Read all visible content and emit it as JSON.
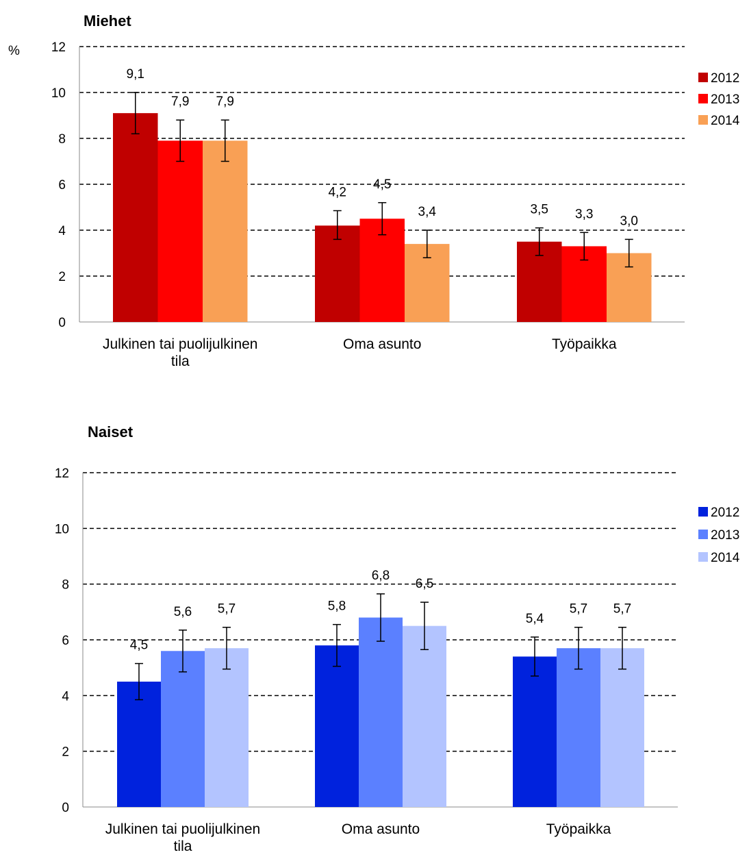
{
  "chart_data": [
    {
      "type": "bar",
      "title": "Miehet",
      "ylabel": "%",
      "ylim": [
        0,
        12
      ],
      "yticks": [
        "0",
        "2",
        "4",
        "6",
        "8",
        "10",
        "12"
      ],
      "grid": "dashed horizontal",
      "legend_position": "right",
      "categories": [
        [
          "Julkinen tai puolijulkinen",
          "tila"
        ],
        [
          "Oma asunto"
        ],
        [
          "Työpaikka"
        ]
      ],
      "series": [
        {
          "name": "2012",
          "color": "#C00000",
          "values": [
            9.1,
            4.2,
            3.5
          ],
          "labels": [
            "9,1",
            "4,2",
            "3,5"
          ],
          "err_low": [
            8.2,
            3.6,
            2.9
          ],
          "err_high": [
            10.0,
            4.85,
            4.1
          ]
        },
        {
          "name": "2013",
          "color": "#FF0000",
          "values": [
            7.9,
            4.5,
            3.3
          ],
          "labels": [
            "7,9",
            "4,5",
            "3,3"
          ],
          "err_low": [
            7.0,
            3.8,
            2.7
          ],
          "err_high": [
            8.8,
            5.2,
            3.9
          ]
        },
        {
          "name": "2014",
          "color": "#F9A055",
          "values": [
            7.9,
            3.4,
            3.0
          ],
          "labels": [
            "7,9",
            "3,4",
            "3,0"
          ],
          "err_low": [
            7.0,
            2.8,
            2.4
          ],
          "err_high": [
            8.8,
            4.0,
            3.6
          ]
        }
      ]
    },
    {
      "type": "bar",
      "title": "Naiset",
      "ylabel": "",
      "ylim": [
        0,
        12
      ],
      "yticks": [
        "0",
        "2",
        "4",
        "6",
        "8",
        "10",
        "12"
      ],
      "grid": "dashed horizontal",
      "legend_position": "right",
      "categories": [
        [
          "Julkinen tai puolijulkinen",
          "tila"
        ],
        [
          "Oma asunto"
        ],
        [
          "Työpaikka"
        ]
      ],
      "series": [
        {
          "name": "2012",
          "color": "#0022DD",
          "values": [
            4.5,
            5.8,
            5.4
          ],
          "labels": [
            "4,5",
            "5,8",
            "5,4"
          ],
          "err_low": [
            3.85,
            5.05,
            4.7
          ],
          "err_high": [
            5.15,
            6.55,
            6.1
          ]
        },
        {
          "name": "2013",
          "color": "#5B80FF",
          "values": [
            5.6,
            6.8,
            5.7
          ],
          "labels": [
            "5,6",
            "6,8",
            "5,7"
          ],
          "err_low": [
            4.85,
            5.95,
            4.95
          ],
          "err_high": [
            6.35,
            7.65,
            6.45
          ]
        },
        {
          "name": "2014",
          "color": "#B3C4FF",
          "values": [
            5.7,
            6.5,
            5.7
          ],
          "labels": [
            "5,7",
            "6,5",
            "5,7"
          ],
          "err_low": [
            4.95,
            5.65,
            4.95
          ],
          "err_high": [
            6.45,
            7.35,
            6.45
          ]
        }
      ]
    }
  ]
}
